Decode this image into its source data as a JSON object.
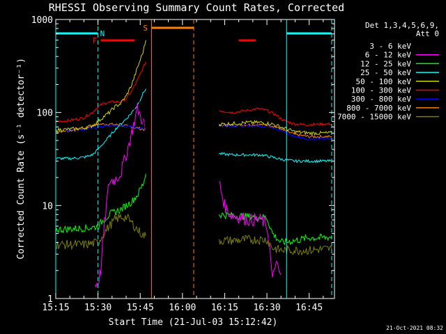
{
  "chart_data": {
    "type": "line",
    "title": "RHESSI Observing Summary Count Rates, Corrected",
    "xlabel": "Start Time (21-Jul-03 15:12:42)",
    "ylabel": "Corrected Count Rate (s⁻¹ detector⁻¹)",
    "yscale": "log",
    "ylim": [
      1,
      1000
    ],
    "xlim_minutes": [
      15.0,
      114.0
    ],
    "x_unit_note": "minutes after 15:00 UT",
    "x_ticks": [
      {
        "label": "15:15",
        "value": 15
      },
      {
        "label": "15:30",
        "value": 30
      },
      {
        "label": "15:45",
        "value": 45
      },
      {
        "label": "16:00",
        "value": 60
      },
      {
        "label": "16:15",
        "value": 75
      },
      {
        "label": "16:30",
        "value": 90
      },
      {
        "label": "16:45",
        "value": 105
      }
    ],
    "y_ticks": [
      {
        "label": "1",
        "value": 1
      },
      {
        "label": "10",
        "value": 10
      },
      {
        "label": "100",
        "value": 100
      },
      {
        "label": "1000",
        "value": 1000
      }
    ],
    "legend_header": [
      "Det 1,3,4,5,6,9,",
      "Att 0"
    ],
    "legend_placement": "right",
    "timestamp": "21-Oct-2021 08:32",
    "series": [
      {
        "name": "3 - 6 keV",
        "color": "#000000",
        "points": [
          [
            40,
            50
          ],
          [
            41,
            70
          ],
          [
            42,
            95
          ],
          [
            43,
            120
          ],
          [
            44,
            150
          ],
          [
            46,
            85
          ],
          [
            47,
            65
          ]
        ],
        "points2": [
          [
            73,
            30
          ],
          [
            74,
            22
          ],
          [
            76,
            18
          ],
          [
            78,
            15
          ],
          [
            80,
            13
          ],
          [
            82,
            12
          ],
          [
            84,
            11
          ],
          [
            86,
            10
          ],
          [
            88,
            9
          ],
          [
            89,
            11
          ],
          [
            90,
            10
          ]
        ]
      },
      {
        "name": "6 - 12 keV",
        "color": "#ff00ff",
        "points": [
          [
            29,
            1.4
          ],
          [
            30,
            1.5
          ],
          [
            31,
            2
          ],
          [
            32,
            5
          ],
          [
            33,
            10
          ],
          [
            34,
            18
          ],
          [
            36,
            19
          ],
          [
            38,
            22
          ],
          [
            40,
            35
          ],
          [
            42,
            60
          ],
          [
            44,
            110
          ],
          [
            46,
            80
          ],
          [
            47,
            65
          ]
        ],
        "points2": [
          [
            73,
            18
          ],
          [
            75,
            10
          ],
          [
            77,
            8
          ],
          [
            80,
            7.5
          ],
          [
            84,
            7
          ],
          [
            88,
            7
          ],
          [
            90,
            6
          ],
          [
            91,
            3.5
          ],
          [
            92,
            1.5
          ],
          [
            93,
            2.5
          ],
          [
            94,
            2
          ],
          [
            95,
            1.8
          ]
        ]
      },
      {
        "name": "12 - 25 keV",
        "color": "#00ff00",
        "points": [
          [
            15,
            5.5
          ],
          [
            20,
            5.6
          ],
          [
            25,
            5.7
          ],
          [
            28,
            5.8
          ],
          [
            30,
            6
          ],
          [
            32,
            7
          ],
          [
            34,
            8
          ],
          [
            36,
            8.5
          ],
          [
            38,
            9
          ],
          [
            40,
            10
          ],
          [
            42,
            11
          ],
          [
            44,
            13
          ],
          [
            46,
            17
          ],
          [
            47,
            22
          ]
        ],
        "points2": [
          [
            73,
            8
          ],
          [
            78,
            7.8
          ],
          [
            83,
            7.6
          ],
          [
            88,
            7.5
          ],
          [
            90,
            7.4
          ],
          [
            92,
            5
          ],
          [
            95,
            4
          ],
          [
            100,
            4.2
          ],
          [
            105,
            4.5
          ],
          [
            110,
            4.5
          ],
          [
            113,
            4.6
          ]
        ]
      },
      {
        "name": "25 - 50 keV",
        "color": "#00ffff",
        "points": [
          [
            15,
            32
          ],
          [
            20,
            32
          ],
          [
            25,
            33
          ],
          [
            28,
            35
          ],
          [
            30,
            40
          ],
          [
            32,
            47
          ],
          [
            34,
            55
          ],
          [
            36,
            65
          ],
          [
            38,
            75
          ],
          [
            40,
            85
          ],
          [
            42,
            100
          ],
          [
            44,
            120
          ],
          [
            46,
            160
          ],
          [
            47,
            180
          ]
        ],
        "points2": [
          [
            73,
            36
          ],
          [
            78,
            35
          ],
          [
            83,
            35
          ],
          [
            88,
            35
          ],
          [
            92,
            33
          ],
          [
            96,
            31
          ],
          [
            100,
            30
          ],
          [
            105,
            30
          ],
          [
            110,
            30
          ],
          [
            113,
            30
          ]
        ]
      },
      {
        "name": "50 - 100 keV",
        "color": "#d4d400",
        "points": [
          [
            15,
            65
          ],
          [
            20,
            66
          ],
          [
            25,
            68
          ],
          [
            28,
            72
          ],
          [
            30,
            80
          ],
          [
            32,
            90
          ],
          [
            34,
            100
          ],
          [
            36,
            115
          ],
          [
            38,
            125
          ],
          [
            40,
            150
          ],
          [
            42,
            200
          ],
          [
            44,
            300
          ],
          [
            46,
            450
          ],
          [
            47,
            600
          ]
        ],
        "points2": [
          [
            73,
            75
          ],
          [
            78,
            76
          ],
          [
            83,
            78
          ],
          [
            88,
            78
          ],
          [
            92,
            75
          ],
          [
            96,
            68
          ],
          [
            100,
            62
          ],
          [
            105,
            60
          ],
          [
            110,
            60
          ],
          [
            113,
            60
          ]
        ]
      },
      {
        "name": "100 - 300 keV",
        "color": "#ff0000",
        "points": [
          [
            15,
            80
          ],
          [
            20,
            82
          ],
          [
            25,
            88
          ],
          [
            28,
            100
          ],
          [
            30,
            115
          ],
          [
            32,
            125
          ],
          [
            35,
            130
          ],
          [
            38,
            130
          ],
          [
            40,
            140
          ],
          [
            42,
            170
          ],
          [
            44,
            220
          ],
          [
            46,
            300
          ],
          [
            47,
            350
          ]
        ],
        "points2": [
          [
            73,
            105
          ],
          [
            78,
            100
          ],
          [
            83,
            105
          ],
          [
            87,
            110
          ],
          [
            90,
            105
          ],
          [
            93,
            95
          ],
          [
            96,
            82
          ],
          [
            100,
            75
          ],
          [
            105,
            74
          ],
          [
            110,
            75
          ],
          [
            113,
            75
          ]
        ]
      },
      {
        "name": "300 - 800 keV",
        "color": "#0000ff",
        "points": [
          [
            15,
            65
          ],
          [
            20,
            65
          ],
          [
            25,
            66
          ],
          [
            28,
            68
          ],
          [
            30,
            70
          ],
          [
            34,
            72
          ],
          [
            38,
            72
          ],
          [
            42,
            70
          ],
          [
            45,
            68
          ],
          [
            47,
            67
          ]
        ],
        "points2": [
          [
            73,
            72
          ],
          [
            78,
            72
          ],
          [
            83,
            72
          ],
          [
            88,
            72
          ],
          [
            92,
            70
          ],
          [
            96,
            62
          ],
          [
            100,
            55
          ],
          [
            105,
            52
          ],
          [
            110,
            52
          ],
          [
            113,
            52
          ]
        ]
      },
      {
        "name": "800 - 7000 keV",
        "color": "#ff8000",
        "points": [
          [
            15,
            62
          ],
          [
            20,
            64
          ],
          [
            25,
            67
          ],
          [
            28,
            72
          ],
          [
            30,
            75
          ],
          [
            34,
            75
          ],
          [
            38,
            73
          ],
          [
            42,
            70
          ],
          [
            45,
            67
          ],
          [
            47,
            65
          ]
        ],
        "points2": [
          [
            73,
            72
          ],
          [
            78,
            73
          ],
          [
            83,
            74
          ],
          [
            88,
            74
          ],
          [
            92,
            72
          ],
          [
            96,
            64
          ],
          [
            100,
            58
          ],
          [
            105,
            55
          ],
          [
            110,
            55
          ],
          [
            113,
            55
          ]
        ]
      },
      {
        "name": "7000 - 15000 keV",
        "color": "#808000",
        "points": [
          [
            15,
            3.8
          ],
          [
            20,
            3.8
          ],
          [
            25,
            3.8
          ],
          [
            28,
            3.9
          ],
          [
            30,
            4
          ],
          [
            32,
            5
          ],
          [
            34,
            6
          ],
          [
            36,
            7
          ],
          [
            38,
            7.5
          ],
          [
            40,
            7.5
          ],
          [
            42,
            6.5
          ],
          [
            44,
            5.5
          ],
          [
            46,
            4.8
          ],
          [
            47,
            4.7
          ]
        ],
        "points2": [
          [
            73,
            4.2
          ],
          [
            78,
            4.2
          ],
          [
            83,
            4.3
          ],
          [
            88,
            4.3
          ],
          [
            90,
            4.3
          ],
          [
            92,
            3.5
          ],
          [
            95,
            3.3
          ],
          [
            100,
            3.3
          ],
          [
            105,
            3.3
          ],
          [
            110,
            3.4
          ],
          [
            113,
            3.4
          ]
        ]
      }
    ],
    "annotations": [
      {
        "label": "F",
        "color": "#ff0000",
        "x_start": 31,
        "x_end": 43,
        "kind": "flare-interval"
      },
      {
        "label": "",
        "color": "#ff0000",
        "x_start": 80,
        "x_end": 86,
        "kind": "flare-interval"
      },
      {
        "label": "N",
        "color": "#00ffff",
        "x_start": 15,
        "x_end": 30,
        "kind": "night"
      },
      {
        "label": "",
        "color": "#00ffff",
        "x_start": 97,
        "x_end": 113,
        "kind": "night"
      },
      {
        "label": "S",
        "color": "#ff8000",
        "x_start": 49,
        "x_end": 64,
        "kind": "saa"
      }
    ],
    "vlines": [
      {
        "x": 15,
        "color": "#00ffff",
        "style": "solid"
      },
      {
        "x": 30,
        "color": "#00ffff",
        "style": "dashed"
      },
      {
        "x": 97,
        "color": "#00ffff",
        "style": "solid"
      },
      {
        "x": 113,
        "color": "#00ffff",
        "style": "dashed"
      },
      {
        "x": 49,
        "color": "#ff8000",
        "style": "solid"
      },
      {
        "x": 64,
        "color": "#ff8000",
        "style": "dashed"
      }
    ]
  }
}
